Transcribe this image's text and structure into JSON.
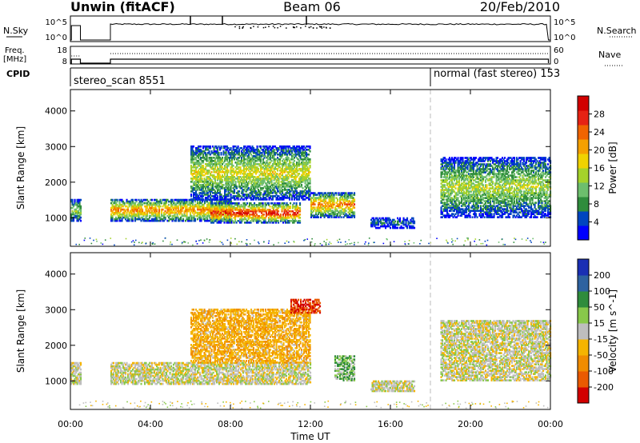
{
  "header": {
    "station": "Unwin (fitACF)",
    "beam": "Beam 06",
    "date": "20/Feb/2010"
  },
  "top_labels": {
    "nsky": "N.Sky",
    "nsearch": "N.Search",
    "freq1": "Freq.",
    "freq2": "[MHz]",
    "nave": "Nave",
    "cpid": "CPID",
    "noise_tick_hi": "10^5",
    "noise_tick_lo": "10^0",
    "freq_tick_hi": "18",
    "freq_tick_lo": "8",
    "nave_tick_hi": "60",
    "nave_tick_lo": "0"
  },
  "cpid": {
    "first": "stereo_scan 8551",
    "second": "normal (fast stereo) 153"
  },
  "colors": {
    "power_scale": [
      "#0000ff",
      "#0045c0",
      "#2f8c3c",
      "#6dbe6d",
      "#a5d22a",
      "#f0d200",
      "#f5a000",
      "#f06400",
      "#e62314",
      "#d20000"
    ],
    "velocity_scale": [
      "#1a2fb4",
      "#2e62a0",
      "#2f8c3c",
      "#88c84a",
      "#bebebe",
      "#f5b400",
      "#f08c00",
      "#ea5a00",
      "#d20000"
    ],
    "dashed_line": "#bbbbbb"
  },
  "chart_data": [
    {
      "type": "heatmap",
      "title": "",
      "panel": "power",
      "xlabel": "Time UT",
      "ylabel": "Slant Range [km]",
      "x_ticks": [
        "00:00",
        "04:00",
        "08:00",
        "12:00",
        "16:00",
        "20:00",
        "00:00"
      ],
      "x_range_hours": [
        0,
        24
      ],
      "y_ticks": [
        "1000",
        "2000",
        "3000",
        "4000"
      ],
      "ylim": [
        200,
        4600
      ],
      "colorbar_label": "Power [dB]",
      "colorbar_ticks": [
        "4",
        "8",
        "12",
        "16",
        "20",
        "24",
        "28"
      ],
      "colorbar_range": [
        0,
        30
      ],
      "mode_change_hour": 18.0,
      "features": [
        {
          "t_start": 0.0,
          "t_end": 0.5,
          "r_min": 900,
          "r_max": 1500,
          "peak_db": 14
        },
        {
          "t_start": 2.0,
          "t_end": 8.0,
          "r_min": 900,
          "r_max": 1500,
          "peak_db": 22
        },
        {
          "t_start": 7.0,
          "t_end": 11.5,
          "r_min": 850,
          "r_max": 1400,
          "peak_db": 28
        },
        {
          "t_start": 6.0,
          "t_end": 12.0,
          "r_min": 1500,
          "r_max": 3000,
          "peak_db": 16
        },
        {
          "t_start": 12.0,
          "t_end": 14.2,
          "r_min": 1000,
          "r_max": 1700,
          "peak_db": 22
        },
        {
          "t_start": 15.0,
          "t_end": 17.2,
          "r_min": 700,
          "r_max": 1000,
          "peak_db": 6
        },
        {
          "t_start": 18.5,
          "t_end": 24.0,
          "r_min": 1000,
          "r_max": 2700,
          "peak_db": 14
        }
      ]
    },
    {
      "type": "heatmap",
      "title": "",
      "panel": "velocity",
      "xlabel": "Time UT",
      "ylabel": "Slant Range [km]",
      "x_ticks": [
        "00:00",
        "04:00",
        "08:00",
        "12:00",
        "16:00",
        "20:00",
        "00:00"
      ],
      "x_range_hours": [
        0,
        24
      ],
      "y_ticks": [
        "1000",
        "2000",
        "3000",
        "4000"
      ],
      "ylim": [
        200,
        4600
      ],
      "colorbar_label": "Velocity [m s^-1]",
      "colorbar_ticks": [
        "200",
        "100",
        "50",
        "15",
        "-15",
        "-50",
        "-100",
        "-200"
      ],
      "colorbar_range": [
        -250,
        250
      ],
      "mode_change_hour": 18.0,
      "features": [
        {
          "t_start": 0.0,
          "t_end": 0.5,
          "r_min": 900,
          "r_max": 1500,
          "velocity": 0
        },
        {
          "t_start": 2.0,
          "t_end": 12.0,
          "r_min": 900,
          "r_max": 1500,
          "velocity": 0
        },
        {
          "t_start": 6.0,
          "t_end": 12.0,
          "r_min": 1500,
          "r_max": 3000,
          "velocity": -40
        },
        {
          "t_start": 11.0,
          "t_end": 12.5,
          "r_min": 2900,
          "r_max": 3300,
          "velocity": -200
        },
        {
          "t_start": 13.2,
          "t_end": 14.2,
          "r_min": 1000,
          "r_max": 1700,
          "velocity": 30
        },
        {
          "t_start": 15.0,
          "t_end": 17.2,
          "r_min": 700,
          "r_max": 1000,
          "velocity": 0
        },
        {
          "t_start": 18.5,
          "t_end": 24.0,
          "r_min": 1000,
          "r_max": 2700,
          "velocity": 0
        }
      ]
    }
  ]
}
